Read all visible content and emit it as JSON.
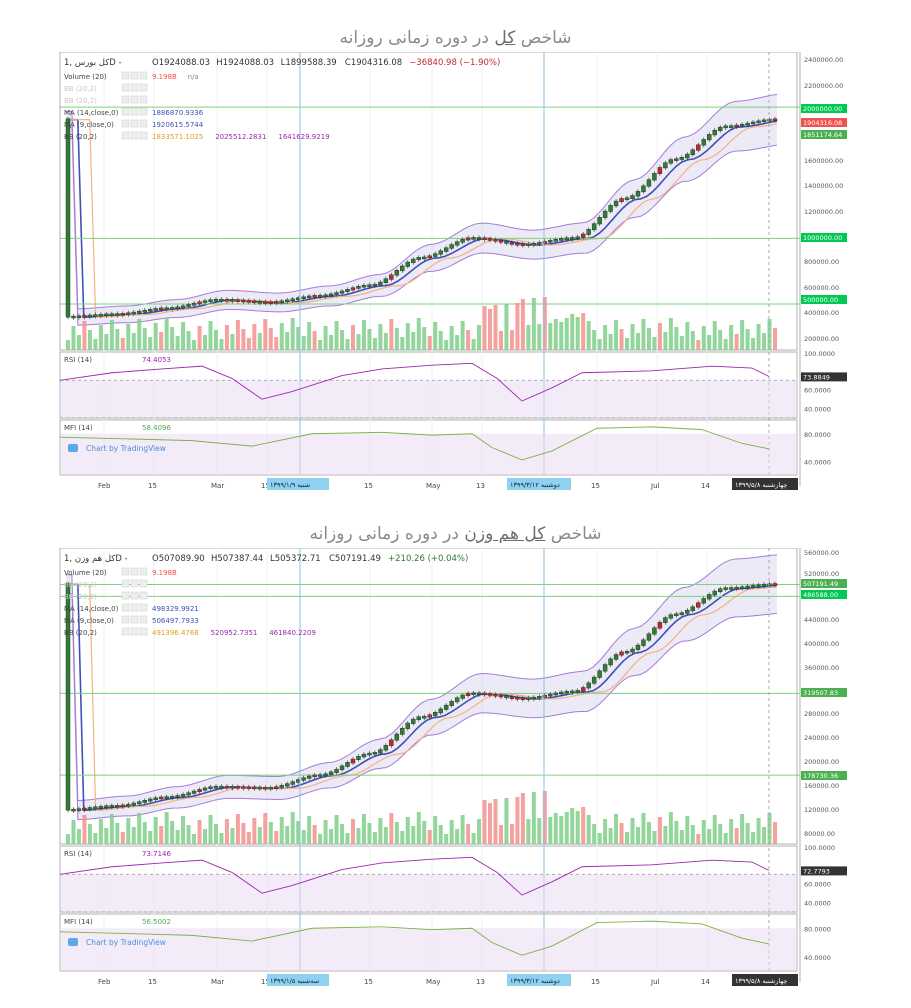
{
  "charts": [
    {
      "id": "top",
      "title_pre": "شاخص",
      "title_key": "کل",
      "title_post": "در دوره زمانی روزانه",
      "ohlc": {
        "symbol": "کل بورس ,1D",
        "o": "O1924088.03",
        "h": "H1924088.03",
        "l": "L1899588.39",
        "c": "C1904316.08",
        "chg": "−36840.98 (−1.90%)"
      },
      "legend": [
        {
          "label": "Volume (20)",
          "vals": [
            "9.198B",
            "n/a"
          ],
          "colors": [
            "#ef5350",
            "#888888"
          ]
        },
        {
          "label": "BB (20,2)",
          "vals": [],
          "colors": [],
          "faded": true
        },
        {
          "label": "BB (20,2)",
          "vals": [],
          "colors": [],
          "faded": true
        },
        {
          "label": "MA (14,close,0)",
          "vals": [
            "1886870.9336"
          ],
          "colors": [
            "#3f51b5"
          ]
        },
        {
          "label": "MA (9,close,0)",
          "vals": [
            "1920615.5744"
          ],
          "colors": [
            "#3f51b5"
          ]
        },
        {
          "label": "BB (20,2)",
          "vals": [
            "1833571.1025",
            "2025512.2831",
            "1641629.9219"
          ],
          "colors": [
            "#e0a020",
            "#9c27b0",
            "#9c27b0"
          ]
        }
      ],
      "price_ticks": [
        "2400000.00",
        "2200000.00",
        "1600000.00",
        "1400000.00",
        "1200000.00",
        "800000.00",
        "600000.00",
        "400000.00",
        "200000.00"
      ],
      "price_badges": [
        {
          "text": "2000000.00",
          "color": "#00c853"
        },
        {
          "text": "1904316.08",
          "color": "#ef5350"
        },
        {
          "text": "1851174.64",
          "color": "#4caf50"
        },
        {
          "text": "1000000.00",
          "color": "#00c853"
        },
        {
          "text": "500000.00",
          "color": "#00c853"
        }
      ],
      "rsi": {
        "label": "RSI (14)",
        "value": "74.4053",
        "ticks": [
          "100.0000",
          "60.0000",
          "40.0000"
        ],
        "badge": "73.8849"
      },
      "mfi": {
        "label": "MFI (14)",
        "value": "58.4096",
        "ticks": [
          "80.0000",
          "40.0000"
        ]
      },
      "attribution": "Chart by TradingView",
      "x_ticks": [
        "Feb",
        "15",
        "Mar",
        "15",
        "15",
        "May",
        "13",
        "15",
        "Jul",
        "14"
      ],
      "x_date_badges": [
        "شنبه ۱۳۹۹/۱/۹",
        "دوشنبه ۱۳۹۹/۳/۱۲",
        "چهارشنبه ۱۳۹۹/۵/۸"
      ]
    },
    {
      "id": "bottom",
      "title_pre": "شاخص",
      "title_key": "کل هم وزن",
      "title_post": "در دوره زمانی روزانه",
      "ohlc": {
        "symbol": "کل هم وزن ,1D",
        "o": "O507089.90",
        "h": "H507387.44",
        "l": "L505372.71",
        "c": "C507191.49",
        "chg": "+210.26 (+0.04%)"
      },
      "legend": [
        {
          "label": "Volume (20)",
          "vals": [
            "9.198B"
          ],
          "colors": [
            "#ef5350"
          ]
        },
        {
          "label": "BB (20,2)",
          "vals": [],
          "colors": [],
          "faded": true
        },
        {
          "label": "BB (20,2)",
          "vals": [],
          "colors": [],
          "faded": true
        },
        {
          "label": "MA (14,close,0)",
          "vals": [
            "498329.9921"
          ],
          "colors": [
            "#3f51b5"
          ]
        },
        {
          "label": "MA (9,close,0)",
          "vals": [
            "506497.7933"
          ],
          "colors": [
            "#3f51b5"
          ]
        },
        {
          "label": "BB (20,2)",
          "vals": [
            "491396.4768",
            "520952.7351",
            "461840.2209"
          ],
          "colors": [
            "#e0a020",
            "#9c27b0",
            "#9c27b0"
          ]
        }
      ],
      "price_ticks": [
        "560000.00",
        "520000.00",
        "440000.00",
        "400000.00",
        "360000.00",
        "280000.00",
        "240000.00",
        "200000.00",
        "160000.00",
        "120000.00",
        "80000.00"
      ],
      "price_badges": [
        {
          "text": "507191.49",
          "color": "#4caf50"
        },
        {
          "text": "486588.00",
          "color": "#00c853"
        },
        {
          "text": "319507.83",
          "color": "#4caf50"
        },
        {
          "text": "178730.36",
          "color": "#4caf50"
        }
      ],
      "rsi": {
        "label": "RSI (14)",
        "value": "73.7146",
        "ticks": [
          "100.0000",
          "60.0000",
          "40.0000"
        ],
        "badge": "72.7793"
      },
      "mfi": {
        "label": "MFI (14)",
        "value": "56.5002",
        "ticks": [
          "80.0000",
          "40.0000"
        ]
      },
      "attribution": "Chart by TradingView",
      "x_ticks": [
        "Feb",
        "15",
        "Mar",
        "15",
        "15",
        "May",
        "13",
        "15",
        "Jul",
        "14"
      ],
      "x_date_badges": [
        "سه‌شنبه ۱۳۹۹/۱/۵",
        "دوشنبه ۱۳۹۹/۳/۱۲",
        "چهارشنبه ۱۳۹۹/۵/۸"
      ]
    }
  ],
  "chart_data": [
    {
      "type": "candlestick",
      "title": "شاخص کل در دوره زمانی روزانه",
      "xlabel": "",
      "ylabel": "",
      "x_range": [
        "Jan",
        "Jul 29"
      ],
      "ylim": [
        150000,
        2420000
      ],
      "series_close": [
        {
          "x": "Jan",
          "y": 400000
        },
        {
          "x": "Feb",
          "y": 420000
        },
        {
          "x": "Feb 15",
          "y": 465000
        },
        {
          "x": "Mar",
          "y": 530000
        },
        {
          "x": "Mar 15",
          "y": 510000
        },
        {
          "x": "Apr",
          "y": 560000
        },
        {
          "x": "Apr 15",
          "y": 640000
        },
        {
          "x": "May",
          "y": 850000
        },
        {
          "x": "May 13",
          "y": 1000000
        },
        {
          "x": "May 25",
          "y": 950000
        },
        {
          "x": "Jun",
          "y": 1000000
        },
        {
          "x": "Jun 15",
          "y": 1300000
        },
        {
          "x": "Jul",
          "y": 1600000
        },
        {
          "x": "Jul 14",
          "y": 1850000
        },
        {
          "x": "Jul 29",
          "y": 1904316.08
        }
      ],
      "horizontal_levels": [
        2000000,
        1000000,
        500000
      ],
      "indicators": {
        "RSI": 74.4053,
        "MFI": 58.4096,
        "MA14": 1886870.9336,
        "MA9": 1920615.5744,
        "BB_mid": 1833571.1025,
        "BB_upper": 2025512.2831,
        "BB_lower": 1641629.9219
      }
    },
    {
      "type": "candlestick",
      "title": "شاخص کل هم وزن در دوره زمانی روزانه",
      "xlabel": "",
      "ylabel": "",
      "x_range": [
        "Jan",
        "Jul 29"
      ],
      "ylim": [
        60000,
        570000
      ],
      "series_close": [
        {
          "x": "Jan",
          "y": 118000
        },
        {
          "x": "Feb",
          "y": 125000
        },
        {
          "x": "Feb 15",
          "y": 140000
        },
        {
          "x": "Mar",
          "y": 158000
        },
        {
          "x": "Mar 15",
          "y": 156000
        },
        {
          "x": "Apr",
          "y": 178000
        },
        {
          "x": "Apr 15",
          "y": 215000
        },
        {
          "x": "May",
          "y": 278000
        },
        {
          "x": "May 13",
          "y": 319000
        },
        {
          "x": "May 25",
          "y": 310000
        },
        {
          "x": "Jun",
          "y": 322000
        },
        {
          "x": "Jun 15",
          "y": 390000
        },
        {
          "x": "Jul",
          "y": 455000
        },
        {
          "x": "Jul 14",
          "y": 500000
        },
        {
          "x": "Jul 29",
          "y": 507191.49
        }
      ],
      "horizontal_levels": [
        507191.49,
        486588.0,
        319507.83,
        178730.36
      ],
      "indicators": {
        "RSI": 73.7146,
        "MFI": 56.5002,
        "MA14": 498329.9921,
        "MA9": 506497.7933,
        "BB_mid": 491396.4768,
        "BB_upper": 520952.7351,
        "BB_lower": 461840.2209
      }
    }
  ]
}
